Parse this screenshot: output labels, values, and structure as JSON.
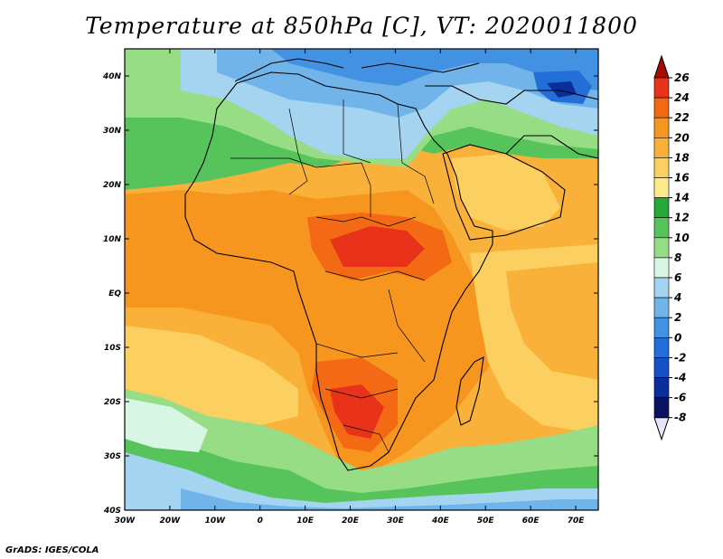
{
  "title": "Temperature at 850hPa [C], VT: 2020011800",
  "credit": "GrADS: IGES/COLA",
  "map": {
    "region": "Africa",
    "lon_range": [
      -30,
      75
    ],
    "lat_range": [
      -40,
      45
    ],
    "x_ticks": [
      "30W",
      "20W",
      "10W",
      "0",
      "10E",
      "20E",
      "30E",
      "40E",
      "50E",
      "60E",
      "70E"
    ],
    "y_ticks": [
      "40N",
      "30N",
      "20N",
      "10N",
      "EQ",
      "10S",
      "20S",
      "30S",
      "40S"
    ]
  },
  "colorbar": {
    "labels": [
      "26",
      "24",
      "22",
      "20",
      "18",
      "16",
      "14",
      "12",
      "10",
      "8",
      "6",
      "4",
      "2",
      "0",
      "-2",
      "-4",
      "-6",
      "-8"
    ],
    "colors": [
      "#a50b00",
      "#e8321a",
      "#f46a14",
      "#f7961f",
      "#f9b13a",
      "#fbd061",
      "#fcea8b",
      "#26a83a",
      "#56c45a",
      "#96dd86",
      "#d8f6e4",
      "#a4d4ef",
      "#70b4ea",
      "#4391e2",
      "#246ed8",
      "#1550c6",
      "#0b2f9a",
      "#0a1360",
      "#e6e6fb"
    ]
  },
  "colors": {
    "background": "#ffffff",
    "coast": "#000000",
    "ocean_cold": "#70b4ea"
  }
}
